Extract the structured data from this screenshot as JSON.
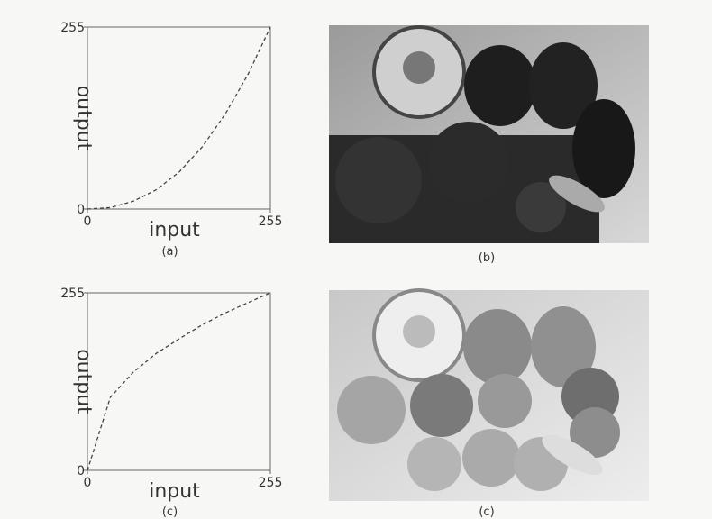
{
  "chart_data": [
    {
      "type": "line",
      "caption": "(a)",
      "xlabel": "input",
      "ylabel": "output",
      "x": [
        0,
        32,
        64,
        96,
        128,
        160,
        192,
        224,
        255
      ],
      "values": [
        0,
        2,
        11,
        27,
        52,
        87,
        133,
        189,
        255
      ],
      "xlim": [
        0,
        255
      ],
      "ylim": [
        0,
        255
      ],
      "xticks": [
        0,
        255
      ],
      "yticks": [
        0,
        255
      ],
      "color": "#444"
    },
    {
      "type": "line",
      "caption": "(c)",
      "xlabel": "input",
      "ylabel": "output",
      "x": [
        0,
        32,
        64,
        96,
        128,
        160,
        192,
        224,
        255
      ],
      "values": [
        0,
        105,
        141,
        168,
        189,
        209,
        226,
        241,
        255
      ],
      "xlim": [
        0,
        255
      ],
      "ylim": [
        0,
        255
      ],
      "xticks": [
        0,
        255
      ],
      "yticks": [
        0,
        255
      ],
      "color": "#444"
    }
  ],
  "images": [
    {
      "caption": "(b)"
    },
    {
      "caption": "(c)"
    }
  ]
}
